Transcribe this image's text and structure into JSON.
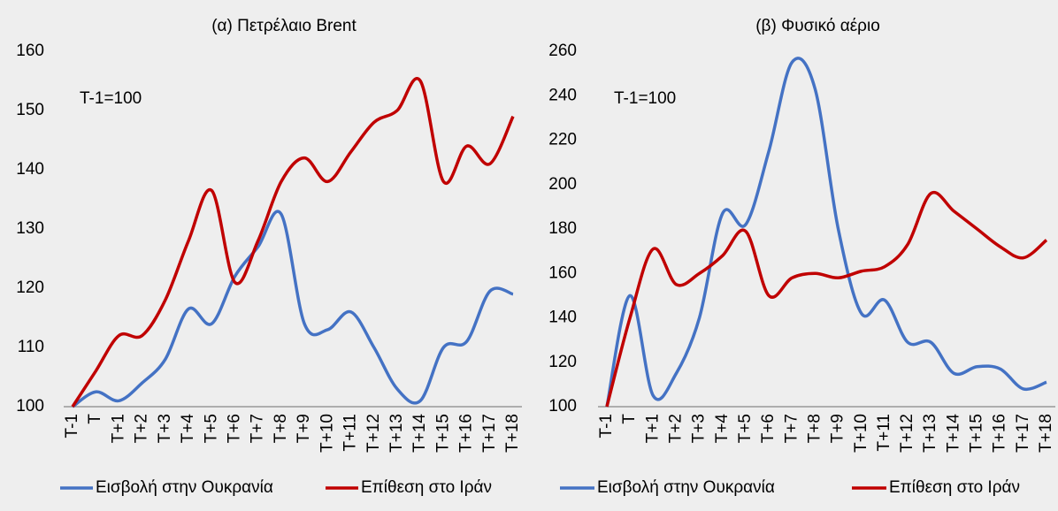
{
  "chart_data": [
    {
      "type": "line",
      "title": "(α) Πετρέλαιο Brent",
      "annotation": "T-1=100",
      "categories": [
        "T-1",
        "T",
        "T+1",
        "T+2",
        "T+3",
        "T+4",
        "T+5",
        "T+6",
        "T+7",
        "T+8",
        "T+9",
        "T+10",
        "T+11",
        "T+12",
        "T+13",
        "T+14",
        "T+15",
        "T+16",
        "T+17",
        "T+18"
      ],
      "series": [
        {
          "name": "Εισβολή στην Ουκρανία",
          "color": "#4472c4",
          "values": [
            100,
            102.5,
            101,
            104,
            108,
            116.5,
            114,
            122,
            127,
            132.5,
            114,
            113,
            116,
            110,
            103,
            101,
            110,
            111,
            119.5,
            119
          ]
        },
        {
          "name": "Επίθεση στο Ιράν",
          "color": "#c00000",
          "values": [
            100,
            106,
            112,
            112,
            118,
            128,
            136.5,
            121,
            128,
            138,
            142,
            138,
            143,
            148,
            150,
            155,
            138,
            144,
            141,
            149
          ]
        }
      ],
      "ylim": [
        100,
        160
      ],
      "yticks": [
        100,
        110,
        120,
        130,
        140,
        150,
        160
      ]
    },
    {
      "type": "line",
      "title": "(β) Φυσικό αέριο",
      "annotation": "T-1=100",
      "categories": [
        "T-1",
        "T",
        "T+1",
        "T+2",
        "T+3",
        "T+4",
        "T+5",
        "T+6",
        "T+7",
        "T+8",
        "T+9",
        "T+10",
        "T+11",
        "T+12",
        "T+13",
        "T+14",
        "T+15",
        "T+16",
        "T+17",
        "T+18"
      ],
      "series": [
        {
          "name": "Εισβολή στην Ουκρανία",
          "color": "#4472c4",
          "values": [
            100,
            150,
            105,
            115,
            140,
            187,
            182,
            215,
            255,
            243,
            180,
            142,
            148,
            129,
            129,
            115,
            118,
            117,
            108,
            111
          ]
        },
        {
          "name": "Επίθεση στο Ιράν",
          "color": "#c00000",
          "values": [
            100,
            140,
            171,
            155,
            160,
            168,
            179,
            150,
            158,
            160,
            158,
            161,
            163,
            173,
            196,
            188,
            180,
            172,
            167,
            175
          ]
        }
      ],
      "ylim": [
        100,
        260
      ],
      "yticks": [
        100,
        120,
        140,
        160,
        180,
        200,
        220,
        240,
        260
      ]
    }
  ]
}
